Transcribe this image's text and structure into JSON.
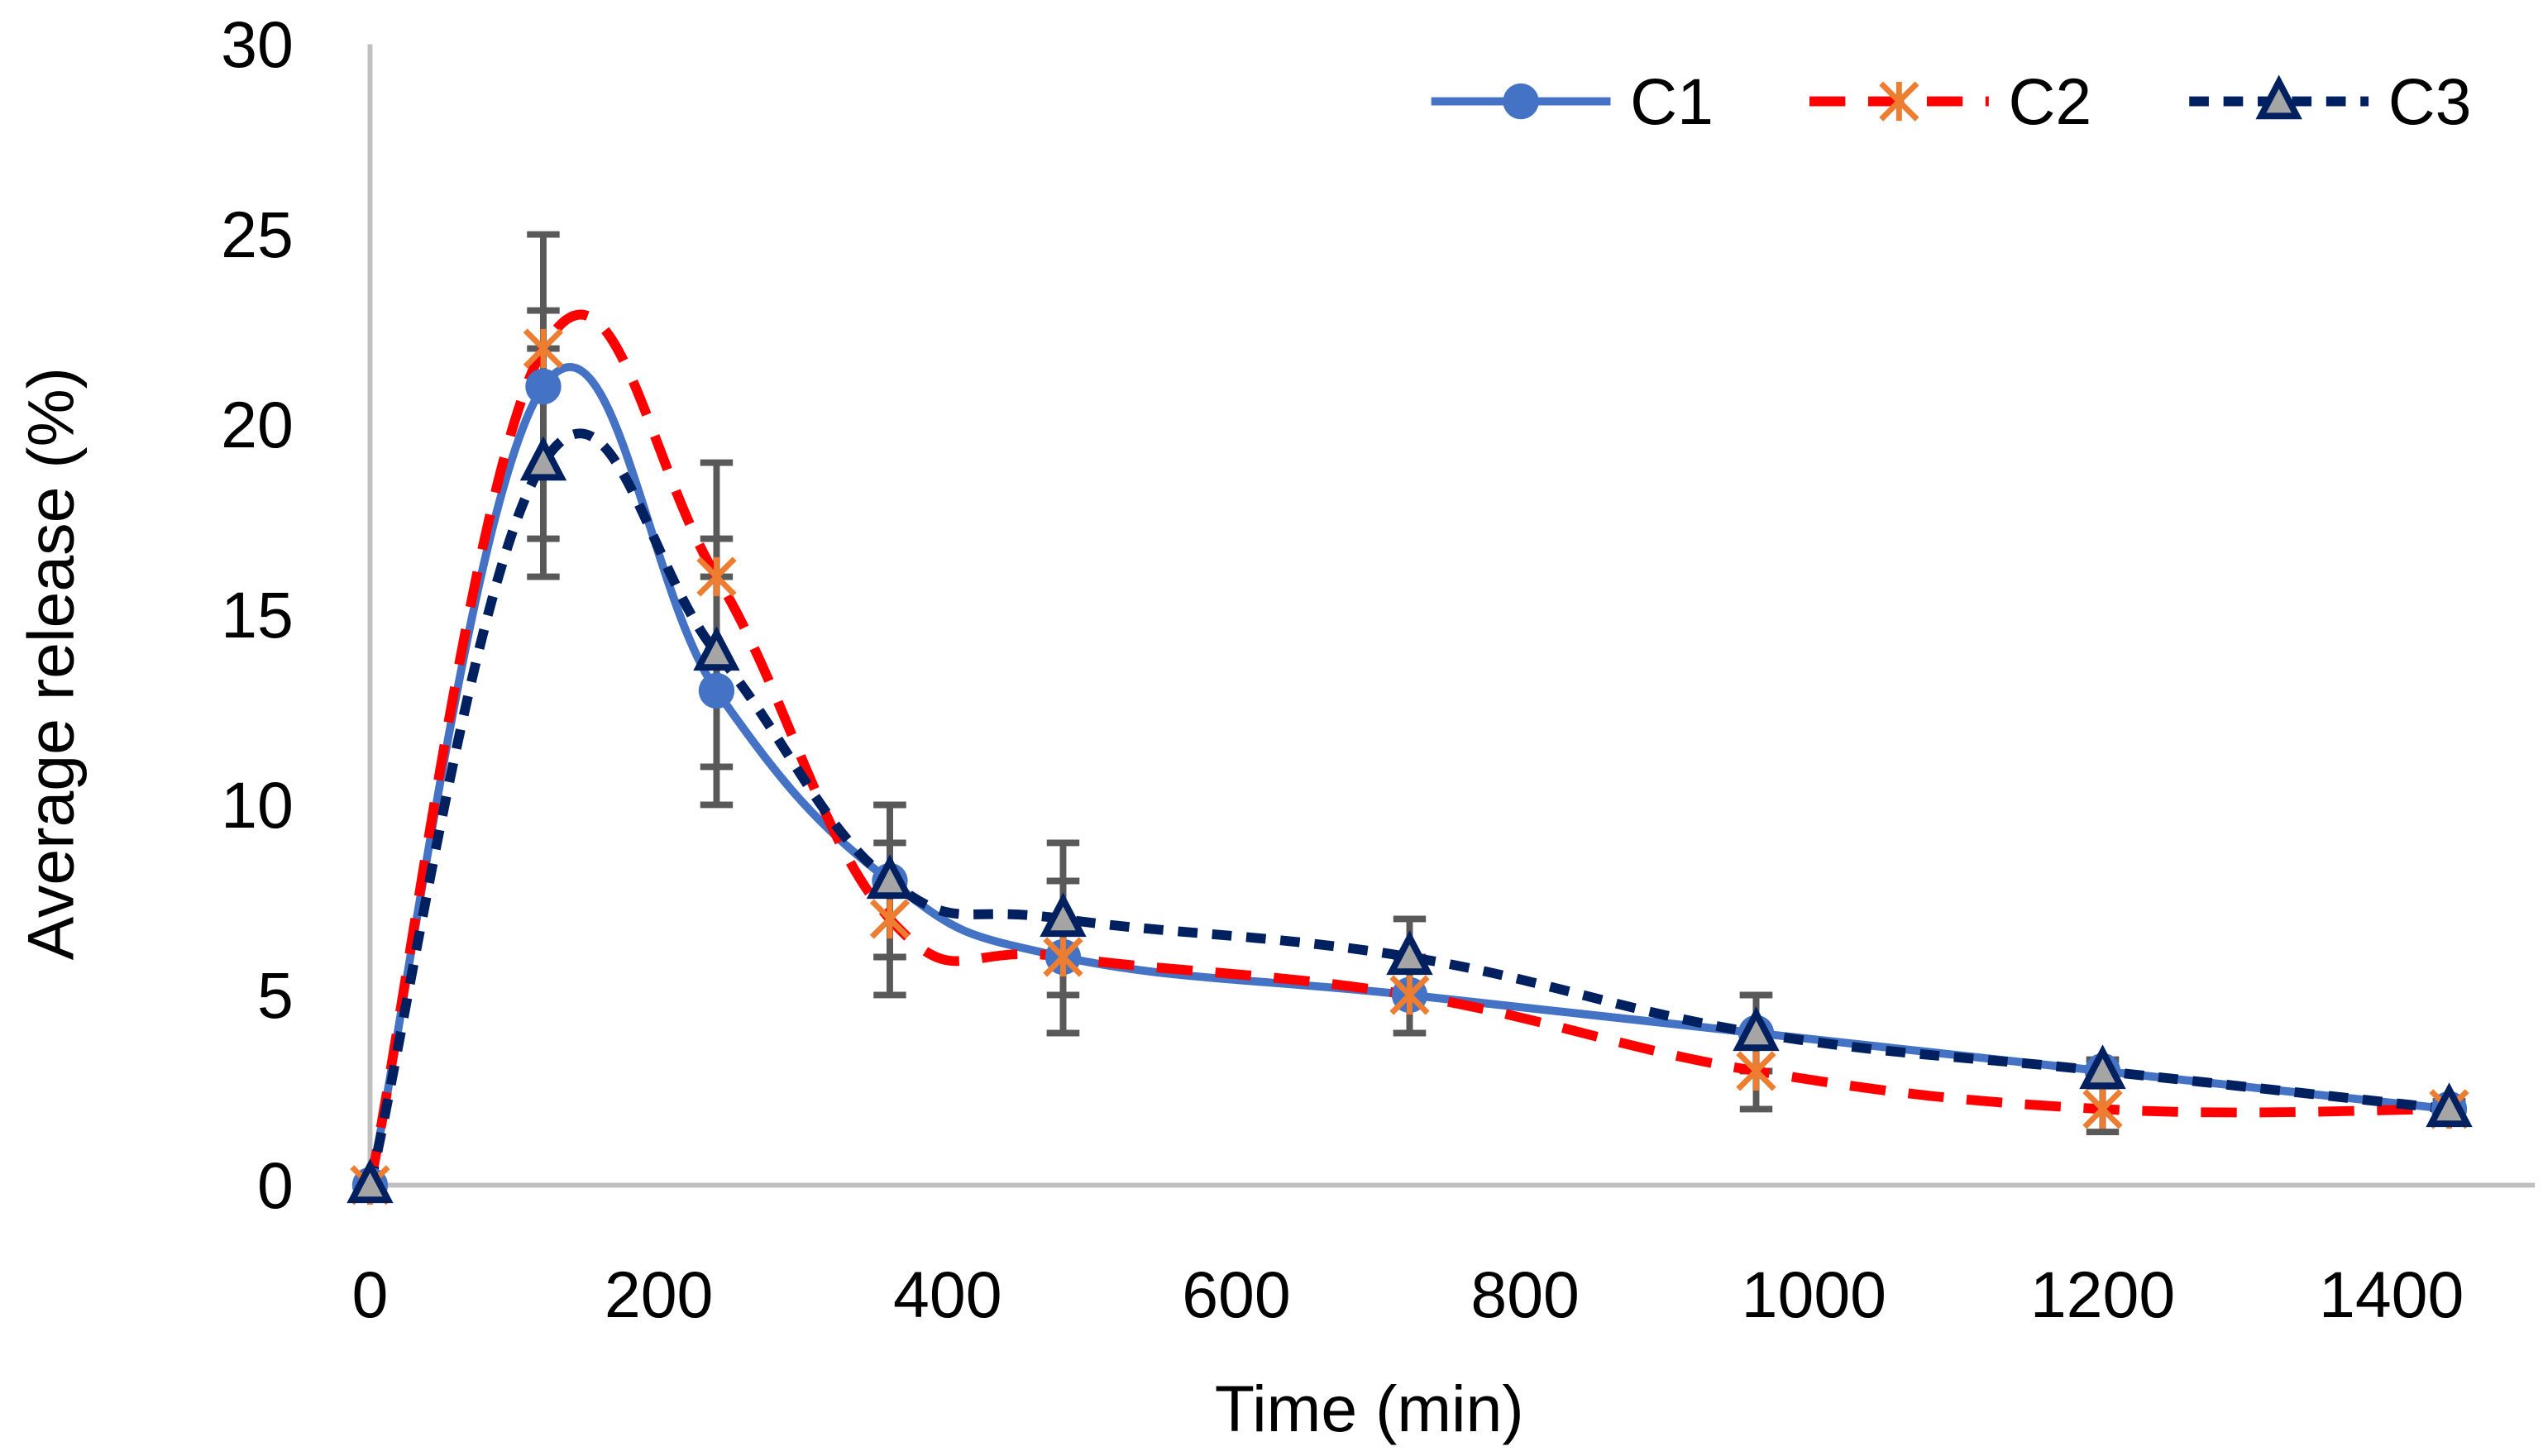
{
  "chart_data": {
    "type": "line",
    "title": "",
    "xlabel": "Time (min)",
    "ylabel": "Average release (%)",
    "xlim": [
      0,
      1400
    ],
    "ylim": [
      0,
      30
    ],
    "xticks": [
      0,
      200,
      400,
      600,
      800,
      1000,
      1200,
      1400
    ],
    "yticks": [
      0,
      5,
      10,
      15,
      20,
      25,
      30
    ],
    "grid": false,
    "legend_position": "top-right",
    "x": [
      0,
      120,
      240,
      360,
      480,
      720,
      960,
      1200,
      1440
    ],
    "series": [
      {
        "name": "C1",
        "color": "#4472C4",
        "marker": "circle",
        "line": "solid",
        "values": [
          0,
          21,
          13,
          8,
          6,
          5,
          4,
          3,
          2
        ],
        "errors": [
          0,
          4,
          3,
          2,
          2,
          1,
          1,
          0.3,
          0.2
        ]
      },
      {
        "name": "C2",
        "color": "#FF0000",
        "marker_color": "#ED7D31",
        "marker": "asterisk",
        "line": "dash",
        "values": [
          0,
          22,
          16,
          7,
          6,
          5,
          3,
          2,
          2
        ],
        "errors": [
          0,
          1,
          3,
          2,
          2,
          1,
          1,
          0.6,
          0.2
        ]
      },
      {
        "name": "C3",
        "color": "#002060",
        "marker": "triangle",
        "line": "short-dash",
        "values": [
          0,
          19,
          14,
          8,
          7,
          6,
          4,
          3,
          2
        ],
        "errors": [
          0,
          3,
          3,
          2,
          2,
          1,
          1,
          0.3,
          0.2
        ]
      }
    ]
  }
}
